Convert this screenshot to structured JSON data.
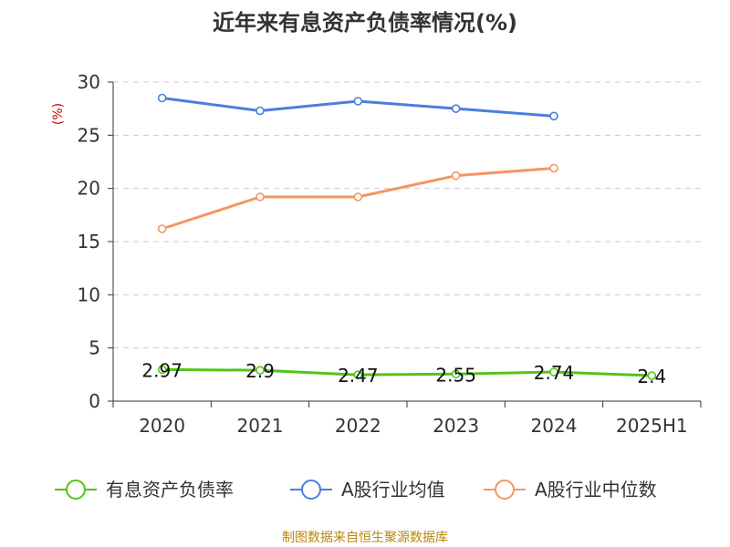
{
  "chart_data": {
    "type": "line",
    "title": "近年来有息资产负债率情况(%)",
    "ylabel": "(%)",
    "xlabel": "",
    "categories": [
      "2020",
      "2021",
      "2022",
      "2023",
      "2024",
      "2025H1"
    ],
    "ylim": [
      0,
      30
    ],
    "yticks": [
      0,
      5,
      10,
      15,
      20,
      25,
      30
    ],
    "grid": true,
    "legend_position": "bottom",
    "series": [
      {
        "name": "有息资产负债率",
        "color": "#52c41a",
        "values": [
          2.97,
          2.9,
          2.47,
          2.55,
          2.74,
          2.4
        ],
        "labels": [
          "2.97",
          "2.9",
          "2.47",
          "2.55",
          "2.74",
          "2.4"
        ]
      },
      {
        "name": "A股行业均值",
        "color": "#4a7fdc",
        "values": [
          28.5,
          27.3,
          28.2,
          27.5,
          26.8,
          null
        ]
      },
      {
        "name": "A股行业中位数",
        "color": "#f59562",
        "values": [
          16.2,
          19.2,
          19.2,
          21.2,
          21.9,
          null
        ]
      }
    ],
    "source": "制图数据来自恒生聚源数据库"
  }
}
